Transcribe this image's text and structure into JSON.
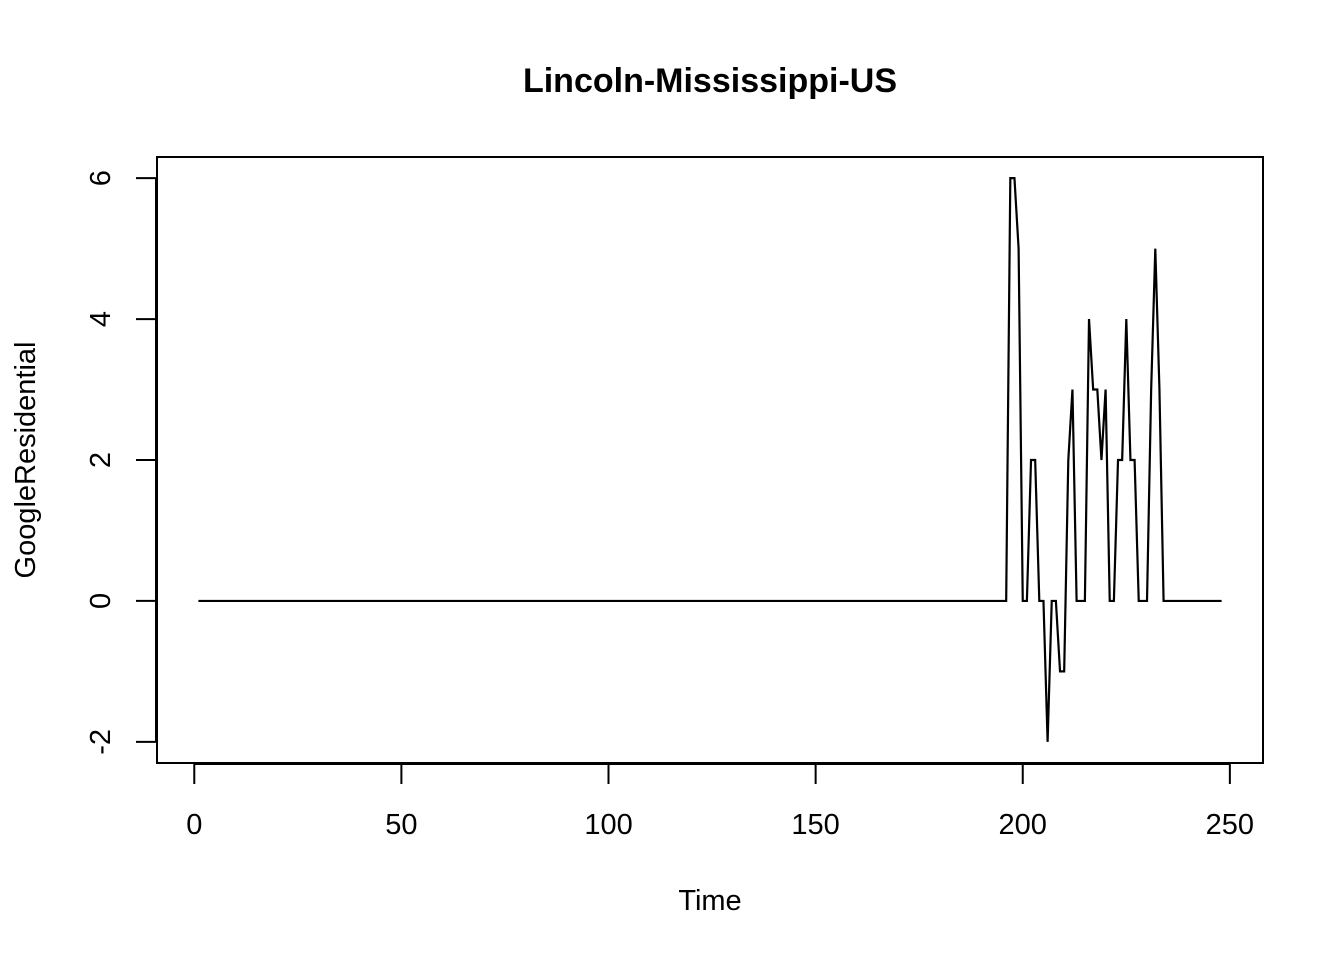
{
  "chart_data": {
    "type": "line",
    "title": "Lincoln-Mississippi-US",
    "xlabel": "Time",
    "ylabel": "GoogleResidential",
    "xlim": [
      -9,
      258
    ],
    "ylim": [
      -2.3,
      6.3
    ],
    "xticks": [
      0,
      50,
      100,
      150,
      200,
      250
    ],
    "yticks": [
      -2,
      0,
      2,
      4,
      6
    ],
    "grid": false,
    "legend": "none",
    "series": [
      {
        "x": [
          1,
          196,
          197,
          198,
          199,
          200,
          201,
          202,
          203,
          204,
          205,
          206,
          207,
          208,
          209,
          210,
          211,
          212,
          213,
          214,
          215,
          216,
          217,
          218,
          219,
          220,
          221,
          222,
          223,
          224,
          225,
          226,
          227,
          228,
          229,
          230,
          231,
          232,
          233,
          234,
          235,
          248
        ],
        "y": [
          0,
          0,
          6,
          6,
          5,
          0,
          0,
          2,
          2,
          0,
          0,
          -2,
          0,
          0,
          -1,
          -1,
          2,
          3,
          0,
          0,
          0,
          4,
          3,
          3,
          2,
          3,
          0,
          0,
          2,
          2,
          4,
          2,
          2,
          0,
          0,
          0,
          3,
          5,
          3,
          0,
          0,
          0
        ]
      }
    ]
  }
}
